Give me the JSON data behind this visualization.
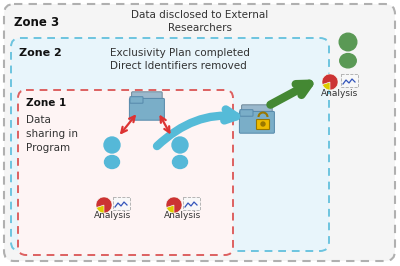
{
  "bg_color": "#ffffff",
  "zone3_text": "Data disclosed to External\nResearchers",
  "zone2_text": "Exclusivity Plan completed\nDirect Identifiers removed",
  "zone1_text": "Data\nsharing in\nProgram",
  "analysis_label": "Analysis",
  "pie_colors1": [
    "#883399",
    "#44aa44",
    "#ddcc00",
    "#cc3333"
  ],
  "pie_colors2": [
    "#883399",
    "#44aa44",
    "#ddcc00",
    "#cc3333"
  ],
  "pie_colors3": [
    "#883399",
    "#44aa44",
    "#ddcc00",
    "#cc3333"
  ]
}
